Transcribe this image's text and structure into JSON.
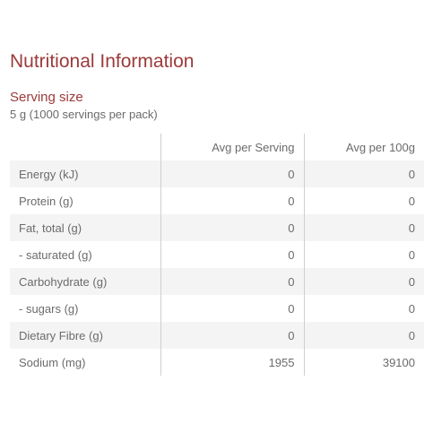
{
  "title": "Nutritional Information",
  "serving": {
    "heading": "Serving size",
    "value": "5 g (1000 servings per pack)"
  },
  "table": {
    "headers": [
      "",
      "Avg per Serving",
      "Avg per 100g"
    ],
    "rows": [
      {
        "name": "Energy (kJ)",
        "per_serving": "0",
        "per_100g": "0"
      },
      {
        "name": "Protein (g)",
        "per_serving": "0",
        "per_100g": "0"
      },
      {
        "name": "Fat, total (g)",
        "per_serving": "0",
        "per_100g": "0"
      },
      {
        "name": "- saturated (g)",
        "per_serving": "0",
        "per_100g": "0"
      },
      {
        "name": "Carbohydrate (g)",
        "per_serving": "0",
        "per_100g": "0"
      },
      {
        "name": "- sugars (g)",
        "per_serving": "0",
        "per_100g": "0"
      },
      {
        "name": "Dietary Fibre (g)",
        "per_serving": "0",
        "per_100g": "0"
      },
      {
        "name": "Sodium (mg)",
        "per_serving": "1955",
        "per_100g": "39100"
      }
    ]
  },
  "colors": {
    "accent": "#9b3a3a",
    "text": "#6b6b6b",
    "row_shade": "#f4f4f4",
    "divider": "#cfcfcf"
  }
}
